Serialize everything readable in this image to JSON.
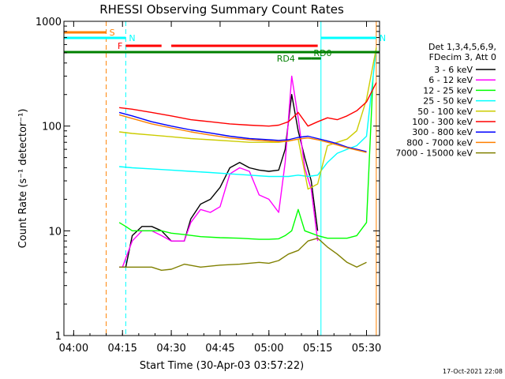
{
  "chart_data": {
    "type": "line",
    "title": "RHESSI Observing Summary Count Rates",
    "xlabel": "Start Time (30-Apr-03 03:57:22)",
    "ylabel": "Count Rate (s⁻¹ detector⁻¹)",
    "y_scale": "log",
    "ylim": [
      1,
      1000
    ],
    "xlim": [
      "03:57",
      "05:34"
    ],
    "x_ticks": [
      "04:00",
      "04:15",
      "04:30",
      "04:45",
      "05:00",
      "05:15",
      "05:30"
    ],
    "y_ticks": [
      "1",
      "10",
      "100",
      "1000"
    ],
    "legend_header": [
      "Det 1,3,4,5,6,9,",
      "FDecim 3, Att 0"
    ],
    "legend_placement": "right",
    "series": [
      {
        "name": "3 - 6 keV",
        "color": "#000000",
        "x": [
          "04:14",
          "04:15",
          "04:16",
          "04:18",
          "04:21",
          "04:24",
          "04:27",
          "04:30",
          "04:34",
          "04:36",
          "04:39",
          "04:42",
          "04:45",
          "04:48",
          "04:51",
          "04:54",
          "04:57",
          "05:00",
          "05:03",
          "05:05",
          "05:07",
          "05:09",
          "05:11",
          "05:13",
          "05:15"
        ],
        "y": [
          4.5,
          4.5,
          4.5,
          9,
          11,
          11,
          10,
          8,
          8,
          13,
          18,
          20,
          26,
          40,
          45,
          40,
          38,
          37,
          38,
          60,
          200,
          90,
          50,
          30,
          10
        ]
      },
      {
        "name": "6 - 12 keV",
        "color": "#ff00ff",
        "x": [
          "04:14",
          "04:15",
          "04:18",
          "04:21",
          "04:24",
          "04:27",
          "04:30",
          "04:34",
          "04:36",
          "04:39",
          "04:42",
          "04:45",
          "04:48",
          "04:51",
          "04:54",
          "04:57",
          "05:00",
          "05:03",
          "05:05",
          "05:07",
          "05:09",
          "05:11",
          "05:13",
          "05:15"
        ],
        "y": [
          4.5,
          4.5,
          8,
          10,
          10,
          9,
          8,
          8,
          12,
          16,
          15,
          17,
          35,
          40,
          37,
          22,
          20,
          15,
          45,
          300,
          120,
          40,
          25,
          8
        ]
      },
      {
        "name": "12 - 25 keV",
        "color": "#00ff00",
        "x": [
          "04:14",
          "04:16",
          "04:18",
          "04:21",
          "04:24",
          "04:27",
          "04:30",
          "04:34",
          "04:39",
          "04:45",
          "04:51",
          "04:57",
          "05:00",
          "05:03",
          "05:05",
          "05:07",
          "05:09",
          "05:11",
          "05:13",
          "05:15",
          "05:18",
          "05:21",
          "05:24",
          "05:27",
          "05:30",
          "05:32"
        ],
        "y": [
          12,
          11,
          10,
          10,
          10,
          10,
          9.5,
          9.2,
          8.8,
          8.6,
          8.5,
          8.3,
          8.3,
          8.4,
          9,
          10,
          16,
          10,
          9.5,
          9,
          8.5,
          8.5,
          8.5,
          9,
          12,
          300
        ]
      },
      {
        "name": "25 - 50 keV",
        "color": "#00ffff",
        "x": [
          "04:14",
          "04:18",
          "04:24",
          "04:30",
          "04:36",
          "04:42",
          "04:48",
          "04:54",
          "05:00",
          "05:03",
          "05:06",
          "05:09",
          "05:12",
          "05:15",
          "05:18",
          "05:21",
          "05:24",
          "05:27",
          "05:30",
          "05:33"
        ],
        "y": [
          41,
          40,
          39,
          38,
          37,
          36,
          35,
          34,
          33,
          33,
          33,
          34,
          33,
          34,
          45,
          55,
          60,
          65,
          80,
          560
        ]
      },
      {
        "name": "50 - 100 keV",
        "color": "#cccc00",
        "x": [
          "04:14",
          "04:18",
          "04:24",
          "04:30",
          "04:36",
          "04:42",
          "04:48",
          "04:54",
          "05:00",
          "05:03",
          "05:06",
          "05:09",
          "05:12",
          "05:15",
          "05:18",
          "05:21",
          "05:24",
          "05:27",
          "05:30",
          "05:33"
        ],
        "y": [
          88,
          85,
          82,
          79,
          76,
          74,
          72,
          70,
          70,
          70,
          72,
          75,
          25,
          28,
          65,
          70,
          75,
          90,
          180,
          560
        ]
      },
      {
        "name": "100 - 300 keV",
        "color": "#ff0000",
        "x": [
          "04:14",
          "04:18",
          "04:24",
          "04:30",
          "04:36",
          "04:42",
          "04:48",
          "04:54",
          "05:00",
          "05:03",
          "05:06",
          "05:09",
          "05:12",
          "05:15",
          "05:18",
          "05:21",
          "05:24",
          "05:27",
          "05:30",
          "05:33"
        ],
        "y": [
          150,
          145,
          135,
          125,
          115,
          110,
          105,
          102,
          100,
          102,
          110,
          135,
          100,
          110,
          120,
          115,
          125,
          140,
          170,
          260
        ]
      },
      {
        "name": "300 - 800 keV",
        "color": "#0000ff",
        "x": [
          "04:14",
          "04:18",
          "04:24",
          "04:30",
          "04:36",
          "04:42",
          "04:48",
          "04:54",
          "05:00",
          "05:03",
          "05:06",
          "05:09",
          "05:12",
          "05:15",
          "05:18",
          "05:21",
          "05:24",
          "05:27",
          "05:30"
        ],
        "y": [
          135,
          125,
          110,
          100,
          92,
          86,
          80,
          76,
          74,
          73,
          74,
          78,
          80,
          76,
          72,
          68,
          63,
          60,
          57
        ]
      },
      {
        "name": "800 - 7000 keV",
        "color": "#ff8000",
        "x": [
          "04:14",
          "04:18",
          "04:24",
          "04:30",
          "04:36",
          "04:42",
          "04:48",
          "04:54",
          "05:00",
          "05:03",
          "05:06",
          "05:09",
          "05:12",
          "05:15",
          "05:18",
          "05:21",
          "05:24",
          "05:27",
          "05:30"
        ],
        "y": [
          128,
          118,
          105,
          96,
          88,
          82,
          77,
          74,
          72,
          71,
          72,
          75,
          77,
          74,
          70,
          66,
          62,
          59,
          56
        ]
      },
      {
        "name": "7000 - 15000 keV",
        "color": "#808000",
        "x": [
          "04:14",
          "04:16",
          "04:18",
          "04:21",
          "04:24",
          "04:27",
          "04:30",
          "04:34",
          "04:39",
          "04:45",
          "04:51",
          "04:57",
          "05:00",
          "05:03",
          "05:06",
          "05:09",
          "05:12",
          "05:15",
          "05:18",
          "05:21",
          "05:24",
          "05:27",
          "05:30"
        ],
        "y": [
          4.5,
          4.5,
          4.5,
          4.5,
          4.5,
          4.2,
          4.3,
          4.8,
          4.5,
          4.7,
          4.8,
          5.0,
          4.9,
          5.2,
          6.0,
          6.5,
          8.0,
          8.5,
          7.0,
          6.0,
          5.0,
          4.5,
          5.0
        ]
      }
    ],
    "flag_bars": [
      {
        "label": "S",
        "color": "#ff8000",
        "x_start": "03:57",
        "x_end": "04:10",
        "level": 1
      },
      {
        "label": "N",
        "color": "#00ffff",
        "x_start": "03:57",
        "x_end": "04:16",
        "level": 2
      },
      {
        "label": "N",
        "color": "#00ffff",
        "x_start": "05:16",
        "x_end": "05:33",
        "level": 2
      },
      {
        "label": "F",
        "color": "#ff0000",
        "x_start": "04:16",
        "x_end": "04:27",
        "level": 3
      },
      {
        "label": "",
        "color": "#ff0000",
        "x_start": "04:30",
        "x_end": "05:15",
        "level": 3
      },
      {
        "label": "RD0",
        "color": "#008000",
        "x_start": "05:13",
        "x_end": "05:16",
        "level": 4
      },
      {
        "label": "",
        "color": "#008000",
        "x_start": "03:57",
        "x_end": "05:34",
        "level": 5
      },
      {
        "label": "RD4",
        "color": "#008000",
        "x_start": "05:09",
        "x_end": "05:13",
        "level": 6
      }
    ],
    "vertical_markers": [
      {
        "x": "04:10",
        "color": "#ff8000",
        "style": "dashed"
      },
      {
        "x": "04:16",
        "color": "#00ffff",
        "style": "dashed"
      },
      {
        "x": "05:16",
        "color": "#00ffff",
        "style": "solid"
      },
      {
        "x": "05:33",
        "color": "#ff8000",
        "style": "solid"
      }
    ],
    "grid": false
  },
  "timestamp": "17-Oct-2021 22:08"
}
